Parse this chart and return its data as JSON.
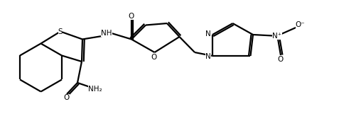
{
  "background": "#ffffff",
  "line_color": "#000000",
  "lw": 1.6,
  "figsize": [
    5.08,
    1.88
  ],
  "dpi": 100,
  "xlim": [
    0,
    10.16
  ],
  "ylim": [
    0,
    3.76
  ]
}
